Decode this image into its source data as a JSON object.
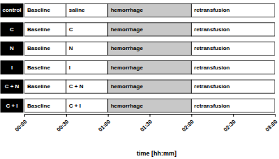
{
  "chart_data": {
    "type": "gantt",
    "x_label": "time [hh:mm]",
    "categories": [
      "control",
      "C",
      "N",
      "I",
      "C + N",
      "C + I"
    ],
    "segments": [
      [
        {
          "label": "Baseline",
          "start": 0,
          "end": 30,
          "color": "#ffffff"
        },
        {
          "label": "saline",
          "start": 30,
          "end": 60,
          "color": "#ffffff"
        },
        {
          "label": "hemorrhage",
          "start": 60,
          "end": 120,
          "color": "#c8c8c8"
        },
        {
          "label": "retransfusion",
          "start": 120,
          "end": 180,
          "color": "#ffffff"
        }
      ],
      [
        {
          "label": "Baseline",
          "start": 0,
          "end": 30,
          "color": "#ffffff"
        },
        {
          "label": "C",
          "start": 30,
          "end": 60,
          "color": "#ffffff"
        },
        {
          "label": "hemorrhage",
          "start": 60,
          "end": 120,
          "color": "#c8c8c8"
        },
        {
          "label": "retransfusion",
          "start": 120,
          "end": 180,
          "color": "#ffffff"
        }
      ],
      [
        {
          "label": "Baseline",
          "start": 0,
          "end": 30,
          "color": "#ffffff"
        },
        {
          "label": "N",
          "start": 30,
          "end": 60,
          "color": "#ffffff"
        },
        {
          "label": "hemorrhage",
          "start": 60,
          "end": 120,
          "color": "#c8c8c8"
        },
        {
          "label": "retransfusion",
          "start": 120,
          "end": 180,
          "color": "#ffffff"
        }
      ],
      [
        {
          "label": "Baseline",
          "start": 0,
          "end": 30,
          "color": "#ffffff"
        },
        {
          "label": "I",
          "start": 30,
          "end": 60,
          "color": "#ffffff"
        },
        {
          "label": "hemorrhage",
          "start": 60,
          "end": 120,
          "color": "#c8c8c8"
        },
        {
          "label": "retransfusion",
          "start": 120,
          "end": 180,
          "color": "#ffffff"
        }
      ],
      [
        {
          "label": "Baseline",
          "start": 0,
          "end": 30,
          "color": "#ffffff"
        },
        {
          "label": "C + N",
          "start": 30,
          "end": 60,
          "color": "#ffffff"
        },
        {
          "label": "hemorrhage",
          "start": 60,
          "end": 120,
          "color": "#c8c8c8"
        },
        {
          "label": "retransfusion",
          "start": 120,
          "end": 180,
          "color": "#ffffff"
        }
      ],
      [
        {
          "label": "Baseline",
          "start": 0,
          "end": 30,
          "color": "#ffffff"
        },
        {
          "label": "C + I",
          "start": 30,
          "end": 60,
          "color": "#ffffff"
        },
        {
          "label": "hemorrhage",
          "start": 60,
          "end": 120,
          "color": "#c8c8c8"
        },
        {
          "label": "retransfusion",
          "start": 120,
          "end": 180,
          "color": "#ffffff"
        }
      ]
    ],
    "xlim": [
      0,
      180
    ],
    "xticks": [
      {
        "value": 0,
        "label": "00:00"
      },
      {
        "value": 30,
        "label": "00:30"
      },
      {
        "value": 60,
        "label": "01:00"
      },
      {
        "value": 90,
        "label": "01:30"
      },
      {
        "value": 120,
        "label": "02:00"
      },
      {
        "value": 150,
        "label": "02:30"
      },
      {
        "value": 180,
        "label": "03:00"
      }
    ]
  }
}
